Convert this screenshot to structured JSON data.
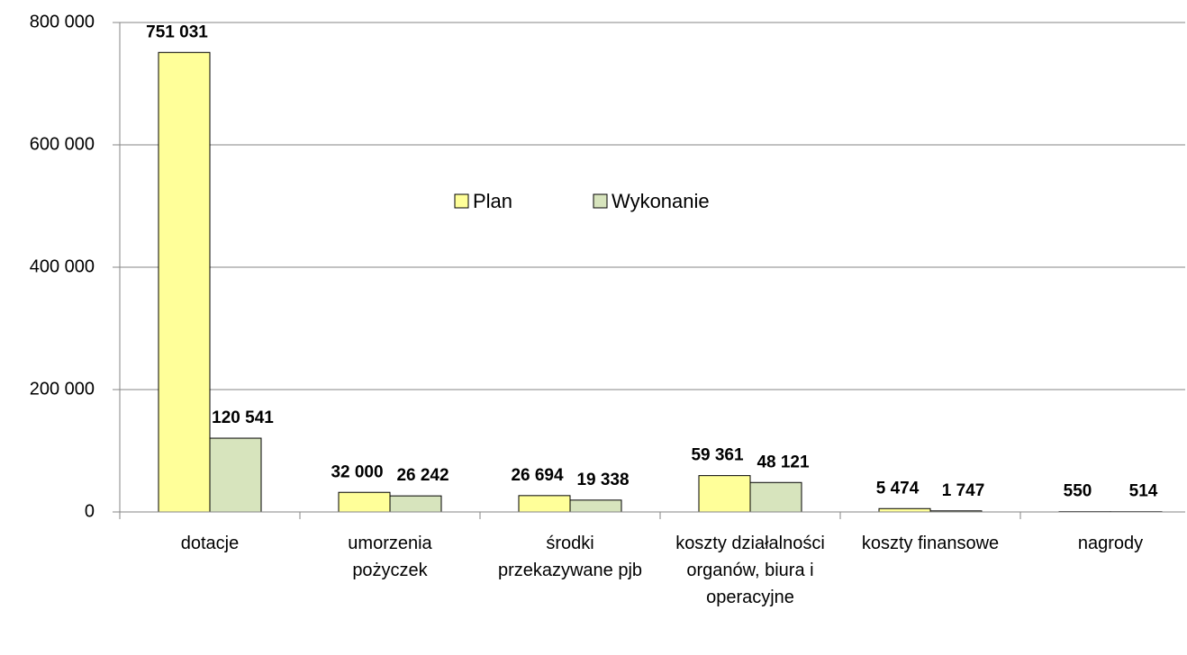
{
  "chart_data": {
    "type": "bar",
    "categories": [
      "dotacje",
      "umorzenia pożyczek",
      "środki przekazywane pjb",
      "koszty działalności organów, biura i operacyjne",
      "koszty finansowe",
      "nagrody"
    ],
    "series": [
      {
        "name": "Plan",
        "color": "#ffff99",
        "values": [
          751031,
          32000,
          26694,
          59361,
          5474,
          550
        ],
        "value_labels": [
          "751 031",
          "32 000",
          "26 694",
          "59 361",
          "5 474",
          "550"
        ]
      },
      {
        "name": "Wykonanie",
        "color": "#d7e4bd",
        "values": [
          120541,
          26242,
          19338,
          48121,
          1747,
          514
        ],
        "value_labels": [
          "120 541",
          "26 242",
          "19 338",
          "48 121",
          "1 747",
          "514"
        ]
      }
    ],
    "ylim": [
      0,
      800000
    ],
    "yticks": [
      0,
      {
        "value": 200000,
        "label": "200 000"
      },
      {
        "value": 400000,
        "label": "400 000"
      },
      {
        "value": 600000,
        "label": "600 000"
      },
      {
        "value": 800000,
        "label": "800 000"
      }
    ],
    "grid": true,
    "legend": "center"
  }
}
